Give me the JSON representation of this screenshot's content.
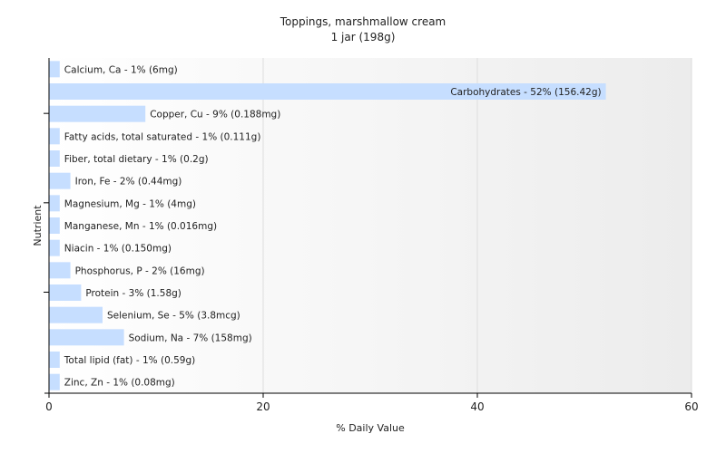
{
  "chart_data": {
    "type": "bar",
    "orientation": "horizontal",
    "title": "Toppings, marshmallow cream",
    "subtitle": "1 jar (198g)",
    "xlabel": "% Daily Value",
    "ylabel": "Nutrient",
    "xlim": [
      0,
      60
    ],
    "xticks": [
      0,
      20,
      40,
      60
    ],
    "grid": true,
    "bar_color": "#c6deff",
    "categories": [
      "Calcium, Ca",
      "Carbohydrates",
      "Copper, Cu",
      "Fatty acids, total saturated",
      "Fiber, total dietary",
      "Iron, Fe",
      "Magnesium, Mg",
      "Manganese, Mn",
      "Niacin",
      "Phosphorus, P",
      "Protein",
      "Selenium, Se",
      "Sodium, Na",
      "Total lipid (fat)",
      "Zinc, Zn"
    ],
    "values": [
      1,
      52,
      9,
      1,
      1,
      2,
      1,
      1,
      1,
      2,
      3,
      5,
      7,
      1,
      1
    ],
    "labels": [
      "Calcium, Ca - 1% (6mg)",
      "Carbohydrates - 52% (156.42g)",
      "Copper, Cu - 9% (0.188mg)",
      "Fatty acids, total saturated - 1% (0.111g)",
      "Fiber, total dietary - 1% (0.2g)",
      "Iron, Fe - 2% (0.44mg)",
      "Magnesium, Mg - 1% (4mg)",
      "Manganese, Mn - 1% (0.016mg)",
      "Niacin - 1% (0.150mg)",
      "Phosphorus, P - 2% (16mg)",
      "Protein - 3% (1.58g)",
      "Selenium, Se - 5% (3.8mcg)",
      "Sodium, Na - 7% (158mg)",
      "Total lipid (fat) - 1% (0.59g)",
      "Zinc, Zn - 1% (0.08mg)"
    ]
  }
}
